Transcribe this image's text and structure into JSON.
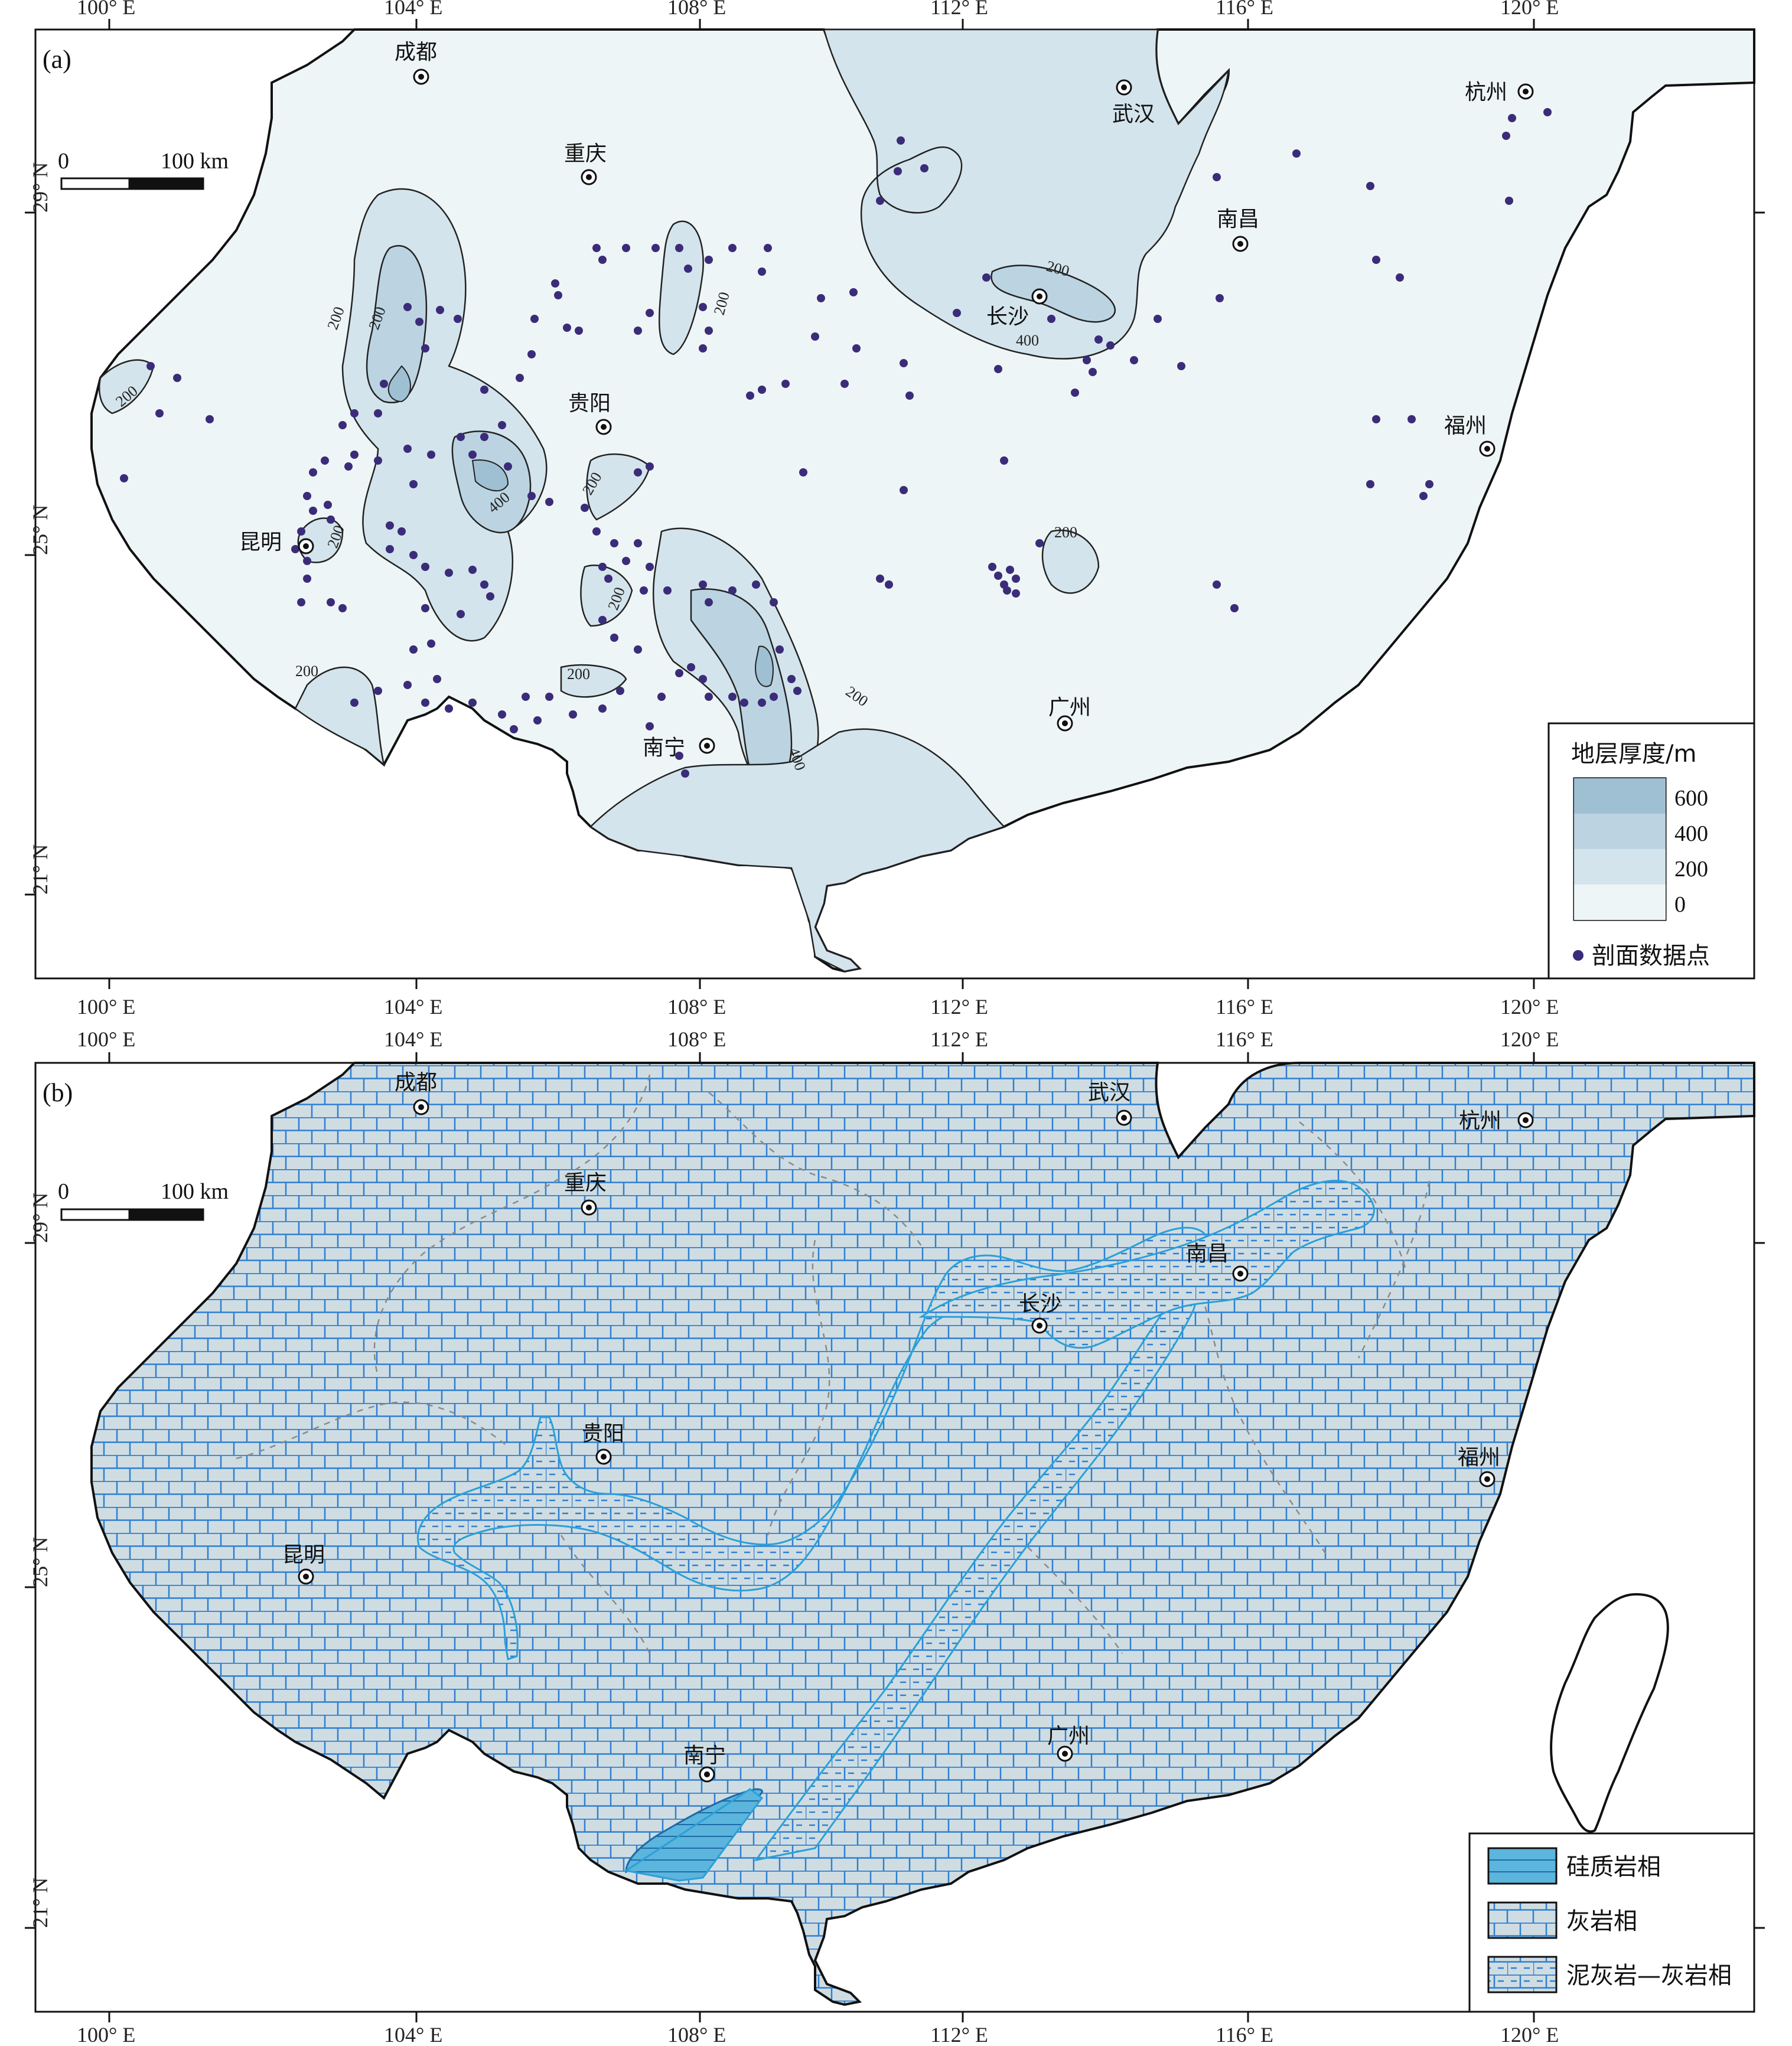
{
  "panel_a": {
    "label": "(a)",
    "lon_ticks": [
      "100° E",
      "104° E",
      "108° E",
      "112° E",
      "116° E",
      "120° E"
    ],
    "lat_ticks": [
      "29° N",
      "25° N",
      "21° N"
    ],
    "scale": {
      "zero": "0",
      "distance": "100 km"
    },
    "contour_labels": [
      "200",
      "400",
      "200",
      "200",
      "400",
      "200",
      "200",
      "200",
      "200",
      "200",
      "200",
      "200",
      "200",
      "400",
      "200"
    ],
    "cities": [
      "成都",
      "重庆",
      "武汉",
      "杭州",
      "南昌",
      "长沙",
      "贵阳",
      "福州",
      "昆明",
      "南宁",
      "广州"
    ],
    "legend": {
      "title": "地层厚度/m",
      "classes": [
        "600",
        "400",
        "200",
        "0"
      ],
      "class_colors": [
        "#9fc0d2",
        "#bcd4e1",
        "#d4e4ec",
        "#eef5f6"
      ],
      "point_label": "剖面数据点",
      "point_color": "#3b2c79"
    }
  },
  "panel_b": {
    "label": "(b)",
    "lon_ticks": [
      "100° E",
      "104° E",
      "108° E",
      "112° E",
      "116° E",
      "120° E"
    ],
    "lat_ticks": [
      "29° N",
      "25° N",
      "21° N"
    ],
    "scale": {
      "zero": "0",
      "distance": "100 km"
    },
    "cities": [
      "成都",
      "武汉",
      "杭州",
      "重庆",
      "南昌",
      "长沙",
      "贵阳",
      "福州",
      "昆明",
      "南宁",
      "广州"
    ],
    "legend": {
      "items": [
        "硅质岩相",
        "灰岩相",
        "泥灰岩—灰岩相"
      ],
      "colors": [
        "#5bb5dc",
        "#cfdde3",
        "#cfdde3"
      ]
    }
  }
}
